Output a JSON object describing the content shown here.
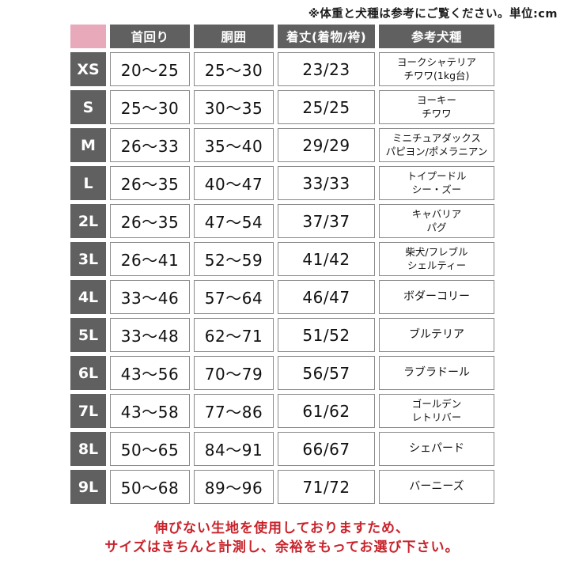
{
  "note": "※体重と犬種は参考にご覧ください。単位:cm",
  "table": {
    "headers": {
      "size": "",
      "neck": "首回り",
      "girth": "胴囲",
      "length": "着丈(着物/袴)",
      "breed": "参考犬種"
    },
    "rows": [
      {
        "size": "XS",
        "neck": "20〜25",
        "girth": "25〜30",
        "length": "23/23",
        "breeds": [
          "ヨークシャテリア",
          "チワワ(1kg台)"
        ]
      },
      {
        "size": "S",
        "neck": "25〜30",
        "girth": "30〜35",
        "length": "25/25",
        "breeds": [
          "ヨーキー",
          "チワワ"
        ]
      },
      {
        "size": "M",
        "neck": "26〜33",
        "girth": "35〜40",
        "length": "29/29",
        "breeds": [
          "ミニチュアダックス",
          "パピヨン/ポメラニアン"
        ]
      },
      {
        "size": "L",
        "neck": "26〜35",
        "girth": "40〜47",
        "length": "33/33",
        "breeds": [
          "トイプードル",
          "シー・ズー"
        ]
      },
      {
        "size": "2L",
        "neck": "26〜35",
        "girth": "47〜54",
        "length": "37/37",
        "breeds": [
          "キャバリア",
          "パグ"
        ]
      },
      {
        "size": "3L",
        "neck": "26〜41",
        "girth": "52〜59",
        "length": "41/42",
        "breeds": [
          "柴犬/フレブル",
          "シェルティー"
        ]
      },
      {
        "size": "4L",
        "neck": "33〜46",
        "girth": "57〜64",
        "length": "46/47",
        "breeds": [
          "ボダーコリー"
        ]
      },
      {
        "size": "5L",
        "neck": "33〜48",
        "girth": "62〜71",
        "length": "51/52",
        "breeds": [
          "ブルテリア"
        ]
      },
      {
        "size": "6L",
        "neck": "43〜56",
        "girth": "70〜79",
        "length": "56/57",
        "breeds": [
          "ラブラドール"
        ]
      },
      {
        "size": "7L",
        "neck": "43〜58",
        "girth": "77〜86",
        "length": "61/62",
        "breeds": [
          "ゴールデン",
          "レトリバー"
        ]
      },
      {
        "size": "8L",
        "neck": "50〜65",
        "girth": "84〜91",
        "length": "66/67",
        "breeds": [
          "シェパード"
        ]
      },
      {
        "size": "9L",
        "neck": "50〜68",
        "girth": "89〜96",
        "length": "71/72",
        "breeds": [
          "バーニーズ"
        ]
      }
    ]
  },
  "footer": {
    "line1": "伸びない生地を使用しておりますため、",
    "line2": "サイズはきちんと計測し、余裕をもってお選び下さい。"
  },
  "colors": {
    "header_bg": "#606060",
    "corner_pink": "#e8a9ba",
    "warning_red": "#c8232b",
    "cell_border": "#8a8a8a"
  }
}
